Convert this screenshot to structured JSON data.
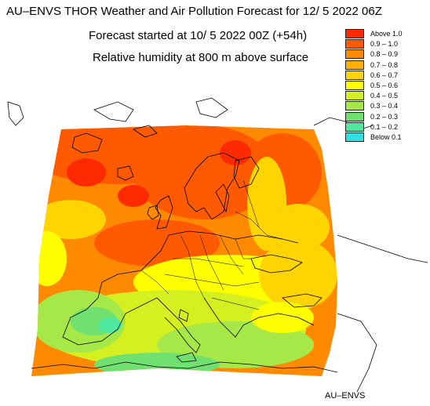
{
  "titles": {
    "line1": "AU–ENVS THOR Weather and Air Pollution Forecast for 12/ 5 2022  06Z",
    "line2": "Forecast started at 10/ 5 2022  00Z (+54h)",
    "line3": "Relative humidity at 800 m above surface"
  },
  "legend": [
    {
      "label": "Above   1.0",
      "color": "#ff2a00"
    },
    {
      "label": "0.9 – 1.0",
      "color": "#ff5a00"
    },
    {
      "label": "0.8 – 0.9",
      "color": "#ff8a00"
    },
    {
      "label": "0.7 – 0.8",
      "color": "#ffb000"
    },
    {
      "label": "0.6 – 0.7",
      "color": "#ffd400"
    },
    {
      "label": "0.5 – 0.6",
      "color": "#ffff00"
    },
    {
      "label": "0.4 – 0.5",
      "color": "#d4f020"
    },
    {
      "label": "0.3 – 0.4",
      "color": "#a6e848"
    },
    {
      "label": "0.2 – 0.3",
      "color": "#70e070"
    },
    {
      "label": "0.1 – 0.2",
      "color": "#50e8a0"
    },
    {
      "label": "Below   0.1",
      "color": "#30e0e0"
    }
  ],
  "credit": "AU–ENVS"
}
